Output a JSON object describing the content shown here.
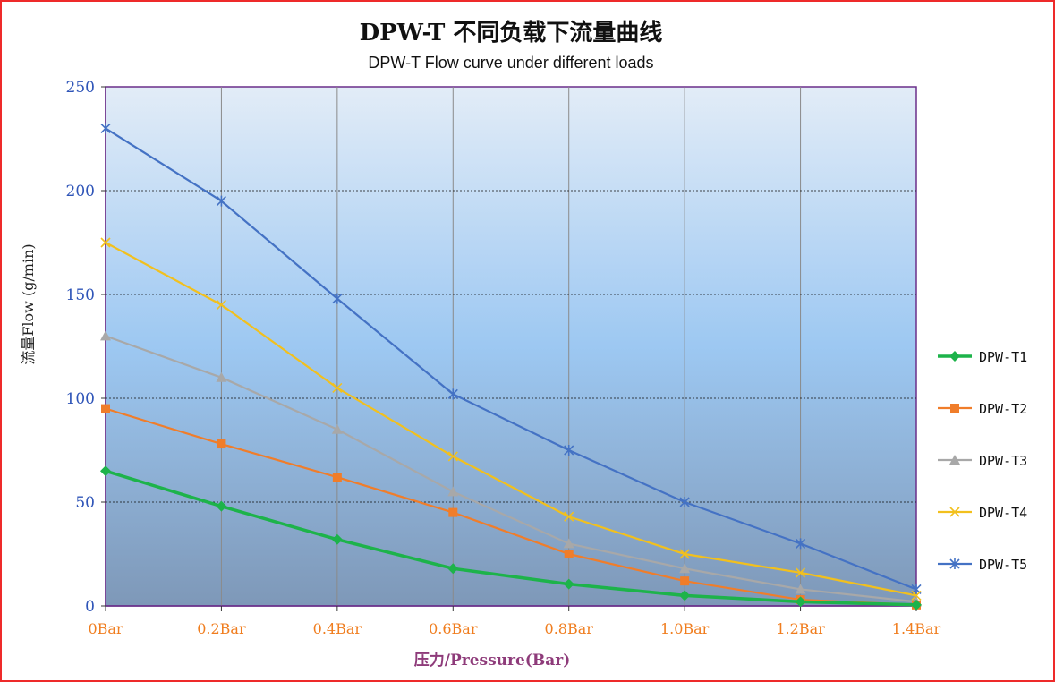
{
  "chart_data": {
    "type": "line",
    "title": "DPW-T 不同负载下流量曲线",
    "subtitle": "DPW-T Flow curve under different loads",
    "xlabel": "压力/Pressure(Bar)",
    "ylabel": "流量Flow (g/min)",
    "categories": [
      "0Bar",
      "0.2Bar",
      "0.4Bar",
      "0.6Bar",
      "0.8Bar",
      "1.0Bar",
      "1.2Bar",
      "1.4Bar"
    ],
    "ylim": [
      0,
      250
    ],
    "yticks": [
      0,
      50,
      100,
      150,
      200,
      250
    ],
    "grid": true,
    "legend_position": "right",
    "series": [
      {
        "name": "DPW-T1",
        "color": "#1db34a",
        "marker": "diamond",
        "values": [
          65,
          48,
          32,
          18,
          10.5,
          5,
          2,
          0.5
        ]
      },
      {
        "name": "DPW-T2",
        "color": "#f07d2a",
        "marker": "square",
        "values": [
          95,
          78,
          62,
          45,
          25,
          12,
          3,
          0.5
        ]
      },
      {
        "name": "DPW-T3",
        "color": "#a8a8a8",
        "marker": "triangle",
        "values": [
          130,
          110,
          85,
          55,
          30,
          18,
          8,
          2
        ]
      },
      {
        "name": "DPW-T4",
        "color": "#f2c01d",
        "marker": "x",
        "values": [
          175,
          145,
          105,
          72,
          43,
          25,
          16,
          5
        ]
      },
      {
        "name": "DPW-T5",
        "color": "#4472c4",
        "marker": "star",
        "values": [
          230,
          195,
          148,
          102,
          75,
          50,
          30,
          8
        ]
      }
    ]
  }
}
